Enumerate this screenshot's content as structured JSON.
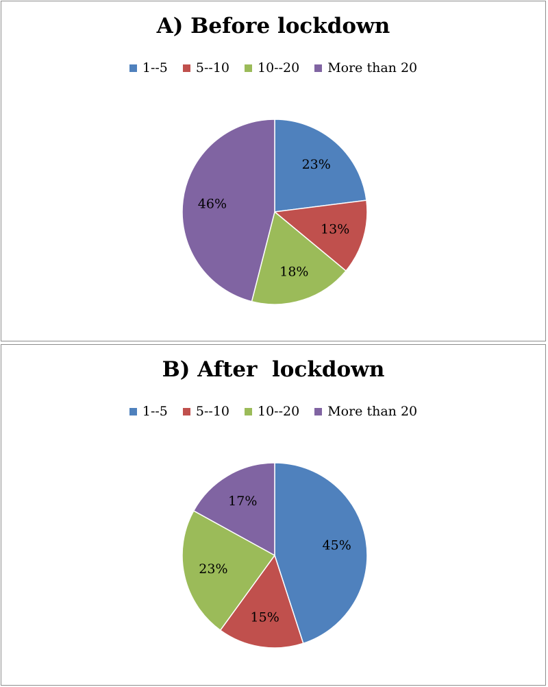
{
  "chart_data": [
    {
      "type": "pie",
      "title": "A) Before lockdown",
      "categories": [
        "1--5",
        "5--10",
        "10--20",
        "More than 20"
      ],
      "values": [
        23,
        13,
        18,
        46
      ],
      "labels": [
        "23%",
        "13%",
        "18%",
        "46%"
      ],
      "colors": [
        "#4f81bd",
        "#c0504d",
        "#9bbb59",
        "#8064a2"
      ],
      "legend": "top"
    },
    {
      "type": "pie",
      "title": "B) After  lockdown",
      "categories": [
        "1--5",
        "5--10",
        "10--20",
        "More than 20"
      ],
      "values": [
        45,
        15,
        23,
        17
      ],
      "labels": [
        "45%",
        "15%",
        "23%",
        "17%"
      ],
      "colors": [
        "#4f81bd",
        "#c0504d",
        "#9bbb59",
        "#8064a2"
      ],
      "legend": "top"
    }
  ]
}
